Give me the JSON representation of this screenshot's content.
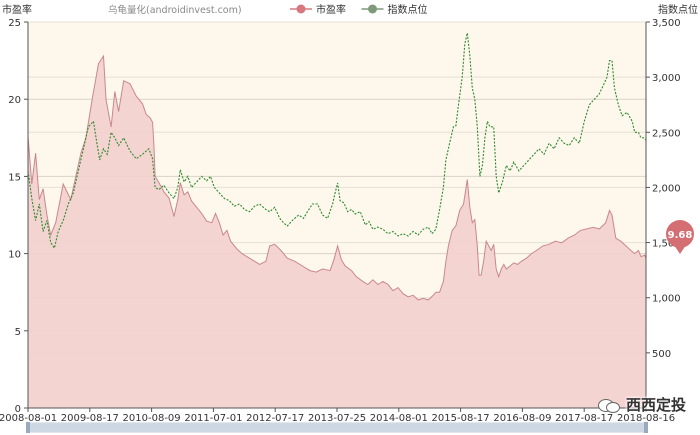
{
  "legend": {
    "watermark_text": "乌龟量化(androidinvest.com)",
    "items": [
      {
        "label": "市盈率",
        "color": "#d7787f"
      },
      {
        "label": "指数点位",
        "color": "#7f9a7a"
      }
    ]
  },
  "badge": {
    "value": "9.68"
  },
  "watermark": {
    "text": "西西定投"
  },
  "colors": {
    "pe_line": "#c9878c",
    "pe_fill": "#f3cfce",
    "index_line": "#2c8a2c",
    "plot_bg": "#fdf7ec",
    "badge": "#d46e72"
  },
  "chart_data": {
    "type": "area",
    "x_tick_labels": [
      "2008-08-01",
      "2009-08-17",
      "2010-08-09",
      "2011-07-01",
      "2012-07-17",
      "2013-07-25",
      "2014-08-01",
      "2015-08-17",
      "2016-08-09",
      "2017-08-17",
      "2018-08-16"
    ],
    "left_axis": {
      "label": "市盈率",
      "min": 0,
      "max": 25,
      "ticks": [
        0,
        5,
        10,
        15,
        20,
        25
      ]
    },
    "right_axis": {
      "label": "指数点位",
      "min": 0,
      "max": 3500,
      "ticks": [
        "500",
        "1,000",
        "1,500",
        "2,000",
        "2,500",
        "3,000",
        "3,500"
      ]
    },
    "series": [
      {
        "name": "市盈率",
        "axis": "left",
        "points": [
          [
            0,
            17.6
          ],
          [
            0.15,
            14.5
          ],
          [
            0.3,
            16.5
          ],
          [
            0.45,
            13.5
          ],
          [
            0.6,
            14.2
          ],
          [
            0.75,
            12.5
          ],
          [
            0.9,
            11.2
          ],
          [
            1.1,
            12.0
          ],
          [
            1.4,
            14.5
          ],
          [
            1.7,
            13.5
          ],
          [
            1.9,
            15.0
          ],
          [
            2.1,
            16.5
          ],
          [
            2.3,
            17.5
          ],
          [
            2.55,
            20.0
          ],
          [
            2.8,
            22.3
          ],
          [
            3.0,
            22.8
          ],
          [
            3.1,
            20.0
          ],
          [
            3.3,
            18.2
          ],
          [
            3.45,
            20.5
          ],
          [
            3.6,
            19.2
          ],
          [
            3.8,
            21.2
          ],
          [
            4.05,
            21.0
          ],
          [
            4.3,
            20.2
          ],
          [
            4.55,
            19.7
          ],
          [
            4.7,
            19.0
          ],
          [
            4.85,
            18.8
          ],
          [
            4.95,
            18.5
          ],
          [
            5.0,
            17.0
          ],
          [
            5.05,
            15.0
          ],
          [
            5.2,
            14.6
          ],
          [
            5.4,
            14.0
          ],
          [
            5.6,
            13.6
          ],
          [
            5.8,
            12.4
          ],
          [
            5.95,
            13.5
          ],
          [
            6.05,
            14.6
          ],
          [
            6.2,
            13.8
          ],
          [
            6.35,
            14.0
          ],
          [
            6.5,
            13.4
          ],
          [
            6.7,
            13.0
          ],
          [
            6.9,
            12.6
          ],
          [
            7.1,
            12.1
          ],
          [
            7.3,
            12.0
          ],
          [
            7.45,
            12.6
          ],
          [
            7.6,
            12.0
          ],
          [
            7.75,
            11.2
          ],
          [
            7.9,
            11.5
          ],
          [
            8.05,
            10.8
          ],
          [
            8.3,
            10.3
          ],
          [
            8.5,
            10.0
          ],
          [
            8.7,
            9.8
          ],
          [
            9.0,
            9.5
          ],
          [
            9.2,
            9.3
          ],
          [
            9.45,
            9.5
          ],
          [
            9.6,
            10.5
          ],
          [
            9.8,
            10.6
          ],
          [
            10.05,
            10.2
          ],
          [
            10.3,
            9.7
          ],
          [
            10.6,
            9.5
          ],
          [
            10.9,
            9.2
          ],
          [
            11.2,
            8.9
          ],
          [
            11.45,
            8.8
          ],
          [
            11.7,
            9.0
          ],
          [
            12.0,
            8.9
          ],
          [
            12.15,
            9.6
          ],
          [
            12.3,
            10.5
          ],
          [
            12.45,
            9.6
          ],
          [
            12.6,
            9.2
          ],
          [
            12.85,
            8.9
          ],
          [
            13.05,
            8.5
          ],
          [
            13.3,
            8.2
          ],
          [
            13.5,
            8.0
          ],
          [
            13.7,
            8.3
          ],
          [
            13.9,
            8.0
          ],
          [
            14.1,
            8.2
          ],
          [
            14.3,
            8.0
          ],
          [
            14.5,
            7.6
          ],
          [
            14.7,
            7.8
          ],
          [
            14.9,
            7.4
          ],
          [
            15.1,
            7.2
          ],
          [
            15.3,
            7.3
          ],
          [
            15.5,
            7.0
          ],
          [
            15.7,
            7.1
          ],
          [
            15.9,
            7.0
          ],
          [
            16.1,
            7.3
          ],
          [
            16.2,
            7.5
          ],
          [
            16.35,
            7.5
          ],
          [
            16.5,
            8.2
          ],
          [
            16.6,
            9.5
          ],
          [
            16.7,
            10.5
          ],
          [
            16.85,
            11.5
          ],
          [
            17.0,
            11.8
          ],
          [
            17.15,
            12.8
          ],
          [
            17.3,
            13.2
          ],
          [
            17.45,
            14.8
          ],
          [
            17.55,
            13.0
          ],
          [
            17.65,
            12.0
          ],
          [
            17.75,
            12.2
          ],
          [
            17.85,
            10.5
          ],
          [
            17.92,
            8.6
          ],
          [
            18.0,
            8.6
          ],
          [
            18.1,
            9.5
          ],
          [
            18.2,
            10.8
          ],
          [
            18.3,
            10.5
          ],
          [
            18.4,
            10.2
          ],
          [
            18.5,
            10.6
          ],
          [
            18.6,
            9.0
          ],
          [
            18.7,
            8.5
          ],
          [
            18.8,
            9.0
          ],
          [
            18.9,
            9.3
          ],
          [
            19.0,
            9.0
          ],
          [
            19.15,
            9.2
          ],
          [
            19.3,
            9.4
          ],
          [
            19.45,
            9.3
          ],
          [
            19.6,
            9.5
          ],
          [
            19.8,
            9.7
          ],
          [
            20.0,
            10.0
          ],
          [
            20.2,
            10.2
          ],
          [
            20.45,
            10.5
          ],
          [
            20.7,
            10.6
          ],
          [
            20.95,
            10.8
          ],
          [
            21.2,
            10.7
          ],
          [
            21.45,
            11.0
          ],
          [
            21.7,
            11.2
          ],
          [
            21.95,
            11.5
          ],
          [
            22.2,
            11.6
          ],
          [
            22.45,
            11.7
          ],
          [
            22.7,
            11.6
          ],
          [
            22.95,
            12.0
          ],
          [
            23.1,
            12.8
          ],
          [
            23.2,
            12.5
          ],
          [
            23.35,
            11.0
          ],
          [
            23.55,
            10.8
          ],
          [
            23.75,
            10.5
          ],
          [
            23.95,
            10.2
          ],
          [
            24.1,
            10.0
          ],
          [
            24.25,
            10.2
          ],
          [
            24.35,
            9.8
          ],
          [
            24.5,
            9.9
          ],
          [
            24.55,
            9.68
          ]
        ]
      },
      {
        "name": "指数点位",
        "axis": "right",
        "points": [
          [
            0,
            2150
          ],
          [
            0.15,
            1900
          ],
          [
            0.3,
            1700
          ],
          [
            0.45,
            1850
          ],
          [
            0.6,
            1600
          ],
          [
            0.75,
            1700
          ],
          [
            0.9,
            1500
          ],
          [
            1.05,
            1450
          ],
          [
            1.2,
            1600
          ],
          [
            1.4,
            1700
          ],
          [
            1.6,
            1850
          ],
          [
            1.8,
            1950
          ],
          [
            2.0,
            2150
          ],
          [
            2.2,
            2350
          ],
          [
            2.4,
            2550
          ],
          [
            2.6,
            2600
          ],
          [
            2.7,
            2450
          ],
          [
            2.85,
            2250
          ],
          [
            3.0,
            2350
          ],
          [
            3.15,
            2300
          ],
          [
            3.3,
            2500
          ],
          [
            3.45,
            2450
          ],
          [
            3.6,
            2380
          ],
          [
            3.8,
            2450
          ],
          [
            4.05,
            2330
          ],
          [
            4.3,
            2260
          ],
          [
            4.55,
            2300
          ],
          [
            4.8,
            2350
          ],
          [
            4.95,
            2260
          ],
          [
            5.05,
            2000
          ],
          [
            5.2,
            1980
          ],
          [
            5.4,
            2020
          ],
          [
            5.6,
            1950
          ],
          [
            5.8,
            1900
          ],
          [
            5.95,
            2000
          ],
          [
            6.05,
            2160
          ],
          [
            6.2,
            2050
          ],
          [
            6.35,
            2100
          ],
          [
            6.5,
            2000
          ],
          [
            6.7,
            2050
          ],
          [
            6.9,
            2100
          ],
          [
            7.1,
            2060
          ],
          [
            7.25,
            2100
          ],
          [
            7.4,
            2000
          ],
          [
            7.6,
            1950
          ],
          [
            7.8,
            1900
          ],
          [
            8.0,
            1880
          ],
          [
            8.2,
            1830
          ],
          [
            8.4,
            1850
          ],
          [
            8.6,
            1800
          ],
          [
            8.8,
            1780
          ],
          [
            9.0,
            1830
          ],
          [
            9.2,
            1850
          ],
          [
            9.45,
            1800
          ],
          [
            9.6,
            1780
          ],
          [
            9.8,
            1820
          ],
          [
            10.0,
            1720
          ],
          [
            10.15,
            1680
          ],
          [
            10.3,
            1650
          ],
          [
            10.5,
            1700
          ],
          [
            10.75,
            1750
          ],
          [
            10.95,
            1720
          ],
          [
            11.1,
            1780
          ],
          [
            11.3,
            1850
          ],
          [
            11.5,
            1850
          ],
          [
            11.7,
            1750
          ],
          [
            11.9,
            1720
          ],
          [
            12.1,
            1850
          ],
          [
            12.2,
            1950
          ],
          [
            12.3,
            2040
          ],
          [
            12.4,
            1880
          ],
          [
            12.55,
            1860
          ],
          [
            12.7,
            1780
          ],
          [
            12.85,
            1800
          ],
          [
            13.0,
            1760
          ],
          [
            13.2,
            1780
          ],
          [
            13.4,
            1660
          ],
          [
            13.55,
            1690
          ],
          [
            13.7,
            1620
          ],
          [
            13.9,
            1640
          ],
          [
            14.1,
            1620
          ],
          [
            14.3,
            1580
          ],
          [
            14.5,
            1600
          ],
          [
            14.7,
            1560
          ],
          [
            14.9,
            1580
          ],
          [
            15.1,
            1560
          ],
          [
            15.3,
            1600
          ],
          [
            15.5,
            1570
          ],
          [
            15.7,
            1620
          ],
          [
            15.9,
            1640
          ],
          [
            16.05,
            1580
          ],
          [
            16.2,
            1620
          ],
          [
            16.35,
            1800
          ],
          [
            16.5,
            2000
          ],
          [
            16.6,
            2250
          ],
          [
            16.75,
            2400
          ],
          [
            16.9,
            2550
          ],
          [
            17.0,
            2560
          ],
          [
            17.1,
            2750
          ],
          [
            17.25,
            3000
          ],
          [
            17.35,
            3300
          ],
          [
            17.45,
            3400
          ],
          [
            17.55,
            3200
          ],
          [
            17.65,
            2900
          ],
          [
            17.75,
            2800
          ],
          [
            17.85,
            2550
          ],
          [
            17.95,
            2100
          ],
          [
            18.05,
            2200
          ],
          [
            18.15,
            2450
          ],
          [
            18.25,
            2600
          ],
          [
            18.35,
            2550
          ],
          [
            18.5,
            2550
          ],
          [
            18.6,
            2100
          ],
          [
            18.7,
            1950
          ],
          [
            18.85,
            2050
          ],
          [
            19.0,
            2200
          ],
          [
            19.15,
            2150
          ],
          [
            19.3,
            2230
          ],
          [
            19.5,
            2150
          ],
          [
            19.7,
            2200
          ],
          [
            19.9,
            2250
          ],
          [
            20.1,
            2300
          ],
          [
            20.3,
            2350
          ],
          [
            20.5,
            2300
          ],
          [
            20.7,
            2400
          ],
          [
            20.9,
            2350
          ],
          [
            21.1,
            2450
          ],
          [
            21.3,
            2400
          ],
          [
            21.5,
            2380
          ],
          [
            21.7,
            2450
          ],
          [
            21.9,
            2400
          ],
          [
            22.1,
            2600
          ],
          [
            22.3,
            2750
          ],
          [
            22.5,
            2800
          ],
          [
            22.7,
            2850
          ],
          [
            22.9,
            2950
          ],
          [
            23.0,
            3000
          ],
          [
            23.1,
            3150
          ],
          [
            23.2,
            3150
          ],
          [
            23.3,
            2900
          ],
          [
            23.45,
            2750
          ],
          [
            23.6,
            2650
          ],
          [
            23.8,
            2680
          ],
          [
            24.0,
            2600
          ],
          [
            24.1,
            2500
          ],
          [
            24.25,
            2500
          ],
          [
            24.35,
            2450
          ],
          [
            24.45,
            2450
          ],
          [
            24.55,
            2430
          ]
        ]
      }
    ],
    "x_range": [
      0,
      24.55
    ],
    "grid": true
  }
}
